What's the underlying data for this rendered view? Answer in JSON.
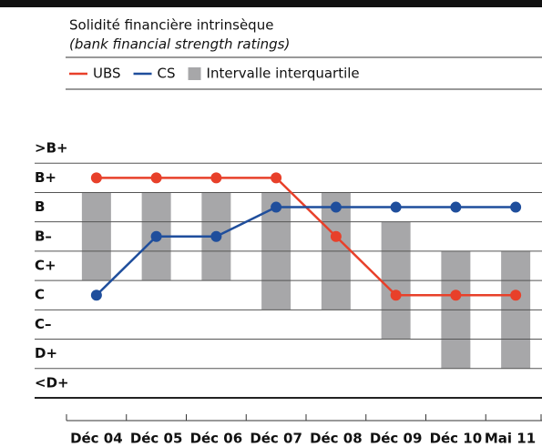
{
  "subtitle": "Solidité financière intrinsèque",
  "subtitle_en": "(bank financial strength ratings)",
  "chart_data": {
    "type": "line",
    "categories": [
      "Déc 04",
      "Déc 05",
      "Déc 06",
      "Déc 07",
      "Déc 08",
      "Déc 09",
      "Déc 10",
      "Mai 11"
    ],
    "series": [
      {
        "name": "UBS",
        "color": "#e8402a",
        "values": [
          7,
          7,
          7,
          7,
          5,
          3,
          3,
          3
        ]
      },
      {
        "name": "CS",
        "color": "#1f4e9c",
        "values": [
          3,
          5,
          5,
          6,
          6,
          6,
          6,
          6
        ]
      }
    ],
    "range": {
      "name": "Intervalle interquartile",
      "color": "#a7a7a9",
      "low": [
        3.5,
        3.5,
        3.5,
        2.5,
        2.5,
        1.5,
        0.5,
        0.5
      ],
      "high": [
        6.5,
        6.5,
        6.5,
        6.5,
        6.5,
        5.5,
        4.5,
        4.5
      ]
    },
    "ylim": [
      -0.5,
      8.5
    ],
    "yticks": [
      {
        "value": 8,
        "label": ">B+"
      },
      {
        "value": 7,
        "label": "B+"
      },
      {
        "value": 6,
        "label": "B"
      },
      {
        "value": 5,
        "label": "B–"
      },
      {
        "value": 4,
        "label": "C+"
      },
      {
        "value": 3,
        "label": "C"
      },
      {
        "value": 2,
        "label": "C–"
      },
      {
        "value": 1,
        "label": "D+"
      },
      {
        "value": 0,
        "label": "<D+"
      }
    ]
  }
}
